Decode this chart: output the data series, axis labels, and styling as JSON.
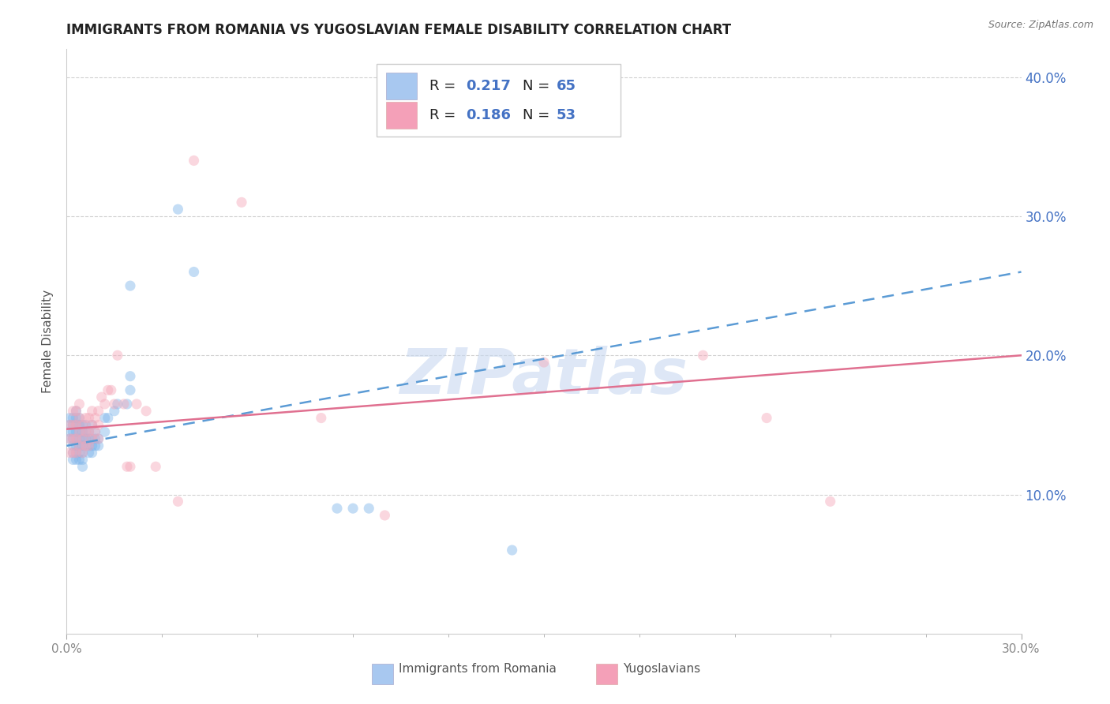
{
  "title": "IMMIGRANTS FROM ROMANIA VS YUGOSLAVIAN FEMALE DISABILITY CORRELATION CHART",
  "source": "Source: ZipAtlas.com",
  "ylabel": "Female Disability",
  "right_yticks": [
    0.1,
    0.2,
    0.3,
    0.4
  ],
  "right_yticklabels": [
    "10.0%",
    "20.0%",
    "30.0%",
    "40.0%"
  ],
  "xlim": [
    0.0,
    0.3
  ],
  "ylim": [
    0.0,
    0.42
  ],
  "series1": {
    "label": "Immigrants from Romania",
    "R": "0.217",
    "N": "65",
    "color": "#7EB4EA",
    "x": [
      0.001,
      0.001,
      0.001,
      0.001,
      0.002,
      0.002,
      0.002,
      0.002,
      0.002,
      0.002,
      0.002,
      0.003,
      0.003,
      0.003,
      0.003,
      0.003,
      0.003,
      0.003,
      0.003,
      0.004,
      0.004,
      0.004,
      0.004,
      0.004,
      0.004,
      0.004,
      0.005,
      0.005,
      0.005,
      0.005,
      0.005,
      0.005,
      0.005,
      0.006,
      0.006,
      0.006,
      0.006,
      0.007,
      0.007,
      0.007,
      0.007,
      0.008,
      0.008,
      0.008,
      0.008,
      0.009,
      0.009,
      0.009,
      0.01,
      0.01,
      0.012,
      0.012,
      0.013,
      0.015,
      0.016,
      0.019,
      0.02,
      0.02,
      0.02,
      0.035,
      0.04,
      0.085,
      0.09,
      0.095,
      0.14
    ],
    "y": [
      0.14,
      0.145,
      0.15,
      0.155,
      0.125,
      0.13,
      0.135,
      0.14,
      0.145,
      0.15,
      0.155,
      0.125,
      0.13,
      0.135,
      0.14,
      0.145,
      0.15,
      0.155,
      0.16,
      0.125,
      0.13,
      0.135,
      0.14,
      0.145,
      0.15,
      0.155,
      0.12,
      0.125,
      0.13,
      0.135,
      0.14,
      0.145,
      0.15,
      0.135,
      0.14,
      0.145,
      0.15,
      0.13,
      0.135,
      0.14,
      0.145,
      0.13,
      0.135,
      0.14,
      0.15,
      0.135,
      0.14,
      0.145,
      0.135,
      0.14,
      0.145,
      0.155,
      0.155,
      0.16,
      0.165,
      0.165,
      0.175,
      0.185,
      0.25,
      0.305,
      0.26,
      0.09,
      0.09,
      0.09,
      0.06
    ]
  },
  "series2": {
    "label": "Yugoslavians",
    "R": "0.186",
    "N": "53",
    "color": "#F4A7B9",
    "x": [
      0.001,
      0.001,
      0.001,
      0.002,
      0.002,
      0.002,
      0.002,
      0.003,
      0.003,
      0.003,
      0.003,
      0.004,
      0.004,
      0.004,
      0.004,
      0.005,
      0.005,
      0.005,
      0.006,
      0.006,
      0.006,
      0.007,
      0.007,
      0.007,
      0.008,
      0.008,
      0.008,
      0.009,
      0.009,
      0.01,
      0.01,
      0.01,
      0.011,
      0.012,
      0.013,
      0.014,
      0.015,
      0.016,
      0.018,
      0.019,
      0.02,
      0.022,
      0.025,
      0.028,
      0.035,
      0.04,
      0.055,
      0.08,
      0.1,
      0.15,
      0.2,
      0.22,
      0.24
    ],
    "y": [
      0.13,
      0.14,
      0.15,
      0.13,
      0.14,
      0.15,
      0.16,
      0.13,
      0.14,
      0.15,
      0.16,
      0.135,
      0.145,
      0.155,
      0.165,
      0.13,
      0.14,
      0.15,
      0.135,
      0.145,
      0.155,
      0.135,
      0.145,
      0.155,
      0.14,
      0.15,
      0.16,
      0.145,
      0.155,
      0.14,
      0.15,
      0.16,
      0.17,
      0.165,
      0.175,
      0.175,
      0.165,
      0.2,
      0.165,
      0.12,
      0.12,
      0.165,
      0.16,
      0.12,
      0.095,
      0.34,
      0.31,
      0.155,
      0.085,
      0.195,
      0.2,
      0.155,
      0.095
    ]
  },
  "trend1": {
    "color": "#5B9BD5",
    "linestyle": "--",
    "x_start": 0.0,
    "x_end": 0.3,
    "y_start": 0.135,
    "y_end": 0.26
  },
  "trend2": {
    "color": "#E07090",
    "linestyle": "-",
    "x_start": 0.0,
    "x_end": 0.3,
    "y_start": 0.147,
    "y_end": 0.2
  },
  "watermark_text": "ZIPatlas",
  "watermark_color": "#C8D8F0",
  "bg_color": "#FFFFFF",
  "grid_color": "#CCCCCC",
  "title_color": "#222222",
  "right_axis_color": "#4472C4",
  "marker_size": 90,
  "marker_alpha": 0.45,
  "legend_patch_color1": "#A8C8F0",
  "legend_patch_color2": "#F4A0B8",
  "legend_text_color": "#222222",
  "legend_value_color": "#4472C4"
}
